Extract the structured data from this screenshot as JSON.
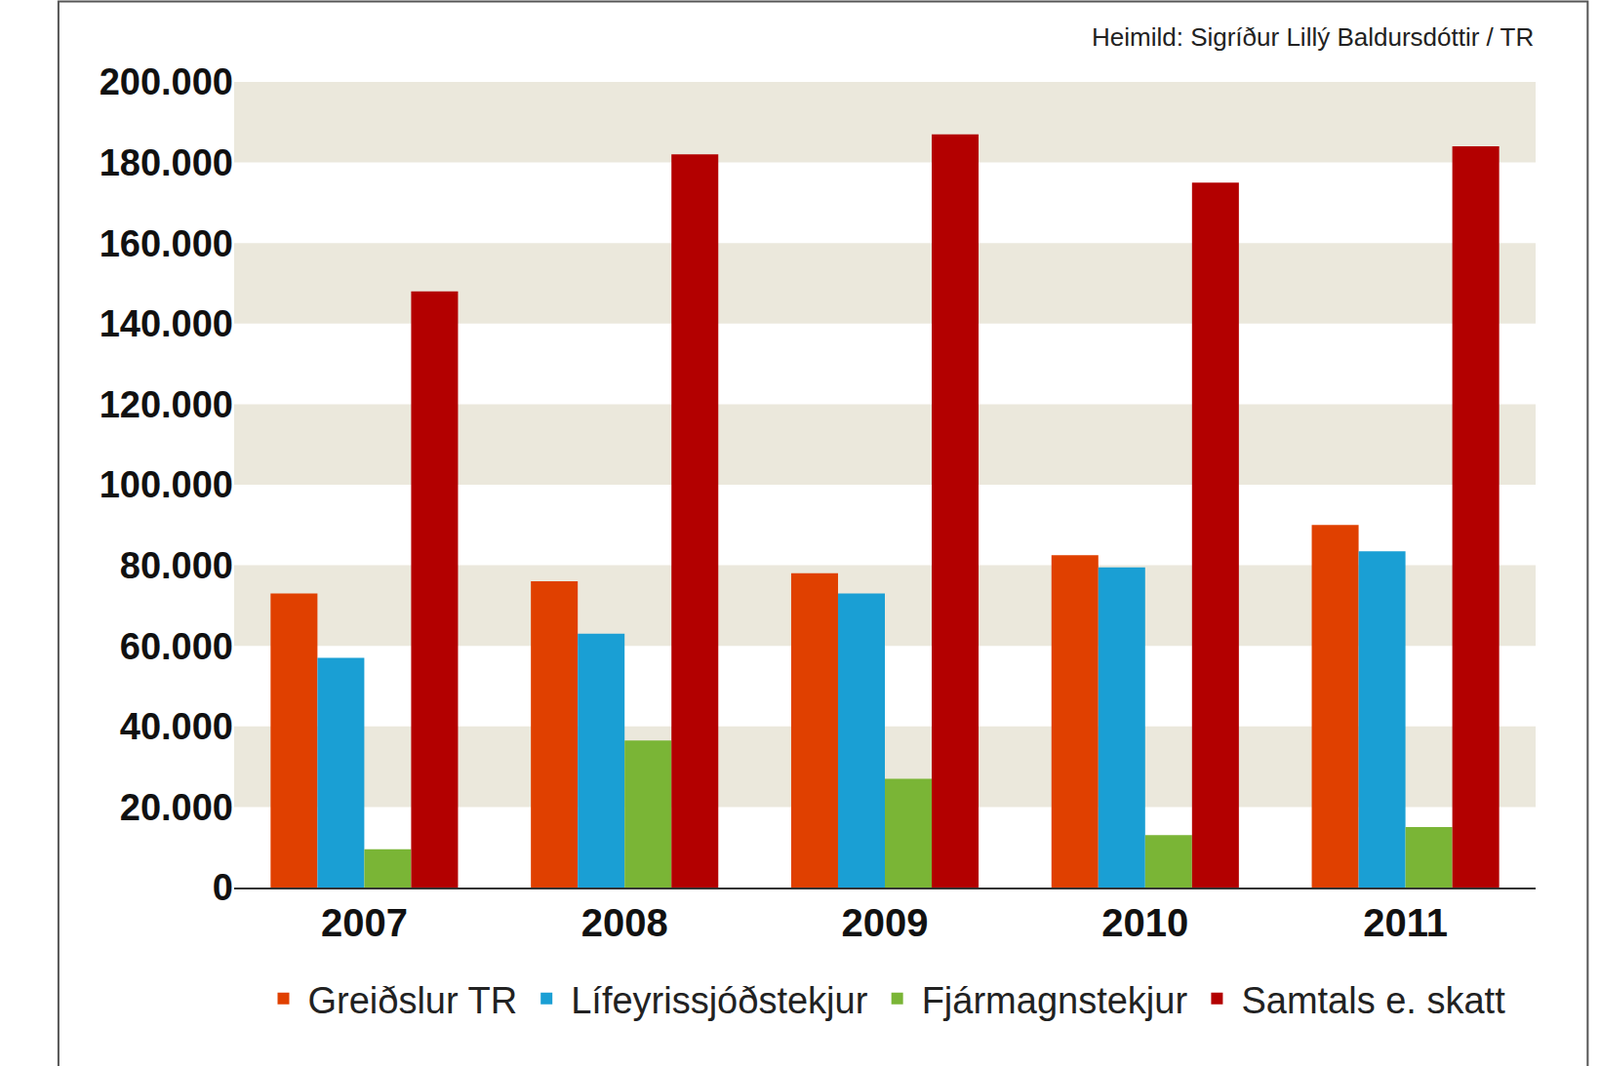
{
  "chart_data": {
    "type": "bar",
    "annotation": "Heimild: Sigríður Lillý Baldursdóttir / TR",
    "categories": [
      "2007",
      "2008",
      "2009",
      "2010",
      "2011"
    ],
    "series": [
      {
        "name": "Greiðslur TR",
        "color": "#e04000",
        "values": [
          73000,
          76000,
          78000,
          82500,
          90000
        ]
      },
      {
        "name": "Lífeyrissjóðstekjur",
        "color": "#1a9fd4",
        "values": [
          57000,
          63000,
          73000,
          79500,
          83500
        ]
      },
      {
        "name": "Fjármagnstekjur",
        "color": "#7ab536",
        "values": [
          9500,
          36500,
          27000,
          13000,
          15000
        ]
      },
      {
        "name": "Samtals e. skatt",
        "color": "#b30000",
        "values": [
          148000,
          182000,
          187000,
          175000,
          184000
        ]
      }
    ],
    "ylim": [
      0,
      200000
    ],
    "yticks": [
      0,
      {
        "value": 20000,
        "label": "20.000"
      },
      {
        "value": 40000,
        "label": "40.000"
      },
      {
        "value": 60000,
        "label": "60.000"
      },
      {
        "value": 80000,
        "label": "80.000"
      },
      {
        "value": 100000,
        "label": "100.000"
      },
      {
        "value": 120000,
        "label": "120.000"
      },
      {
        "value": 140000,
        "label": "140.000"
      },
      {
        "value": 160000,
        "label": "160.000"
      },
      {
        "value": 180000,
        "label": "180.000"
      },
      {
        "value": 200000,
        "label": "200.000"
      }
    ],
    "grid": true,
    "legend": "bottom"
  }
}
